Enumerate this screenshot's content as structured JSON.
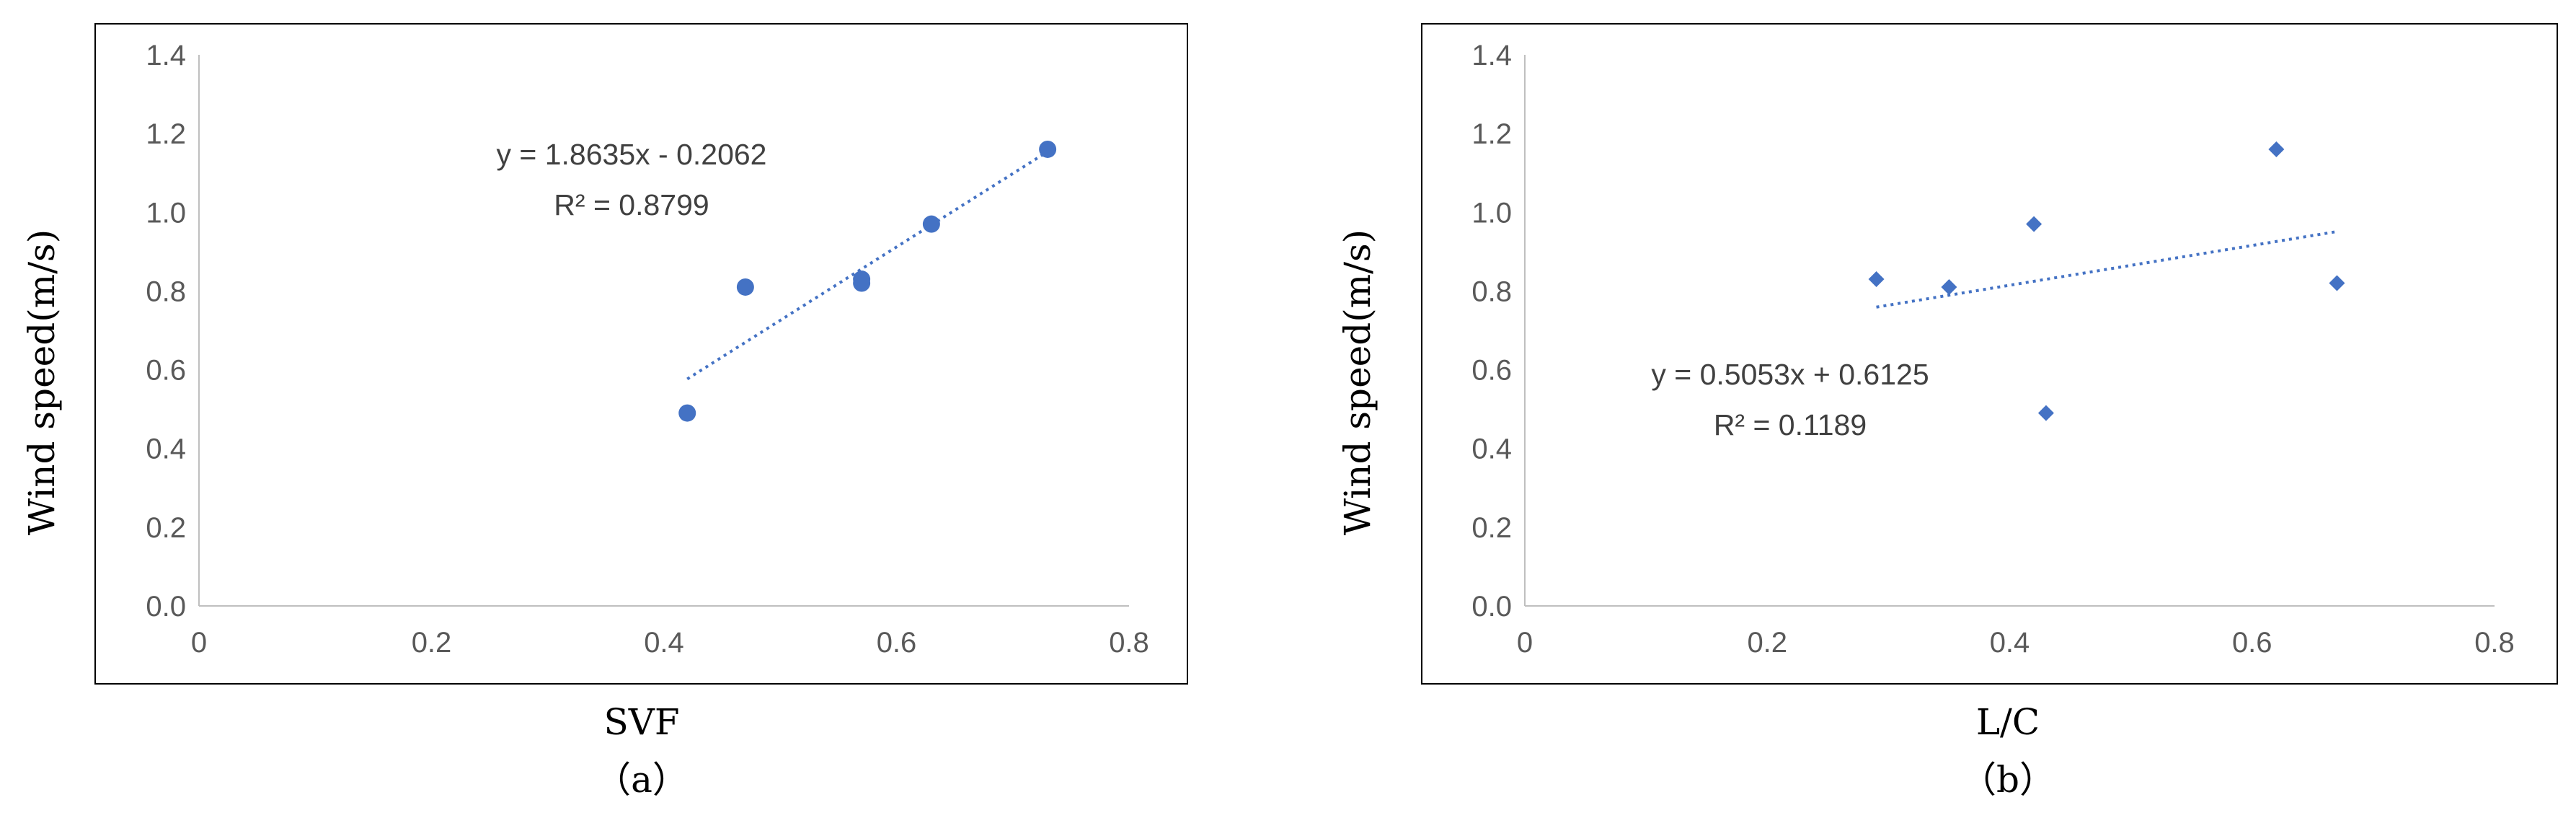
{
  "colors": {
    "marker": "#4472C4",
    "trend": "#4472C4",
    "axis": "#BFBFBF",
    "frame": "#000000",
    "text": "#595959"
  },
  "chart_data": [
    {
      "type": "scatter",
      "caption": "（a）",
      "xlabel": "SVF",
      "ylabel": "Wind speed(m/s)",
      "xlim": [
        0,
        0.8
      ],
      "ylim": [
        0,
        1.4
      ],
      "xticks": [
        "0",
        "0.2",
        "0.4",
        "0.6",
        "0.8"
      ],
      "yticks": [
        "0.0",
        "0.2",
        "0.4",
        "0.6",
        "0.8",
        "1.0",
        "1.2",
        "1.4"
      ],
      "grid": false,
      "marker": "circle",
      "points": [
        {
          "x": 0.42,
          "y": 0.49
        },
        {
          "x": 0.47,
          "y": 0.81
        },
        {
          "x": 0.57,
          "y": 0.82
        },
        {
          "x": 0.57,
          "y": 0.83
        },
        {
          "x": 0.63,
          "y": 0.97
        },
        {
          "x": 0.73,
          "y": 1.16
        }
      ],
      "trendline": {
        "slope": 1.8635,
        "intercept": -0.2062,
        "x_range": [
          0.42,
          0.73
        ]
      },
      "equation": "y = 1.8635x - 0.2062",
      "r2": "R² = 0.8799"
    },
    {
      "type": "scatter",
      "caption": "（b）",
      "xlabel": "L/C",
      "ylabel": "Wind speed(m/s)",
      "xlim": [
        0,
        0.8
      ],
      "ylim": [
        0,
        1.4
      ],
      "xticks": [
        "0",
        "0.2",
        "0.4",
        "0.6",
        "0.8"
      ],
      "yticks": [
        "0.0",
        "0.2",
        "0.4",
        "0.6",
        "0.8",
        "1.0",
        "1.2",
        "1.4"
      ],
      "grid": false,
      "marker": "diamond",
      "points": [
        {
          "x": 0.29,
          "y": 0.83
        },
        {
          "x": 0.35,
          "y": 0.81
        },
        {
          "x": 0.42,
          "y": 0.97
        },
        {
          "x": 0.43,
          "y": 0.49
        },
        {
          "x": 0.62,
          "y": 1.16
        },
        {
          "x": 0.67,
          "y": 0.82
        }
      ],
      "trendline": {
        "slope": 0.5053,
        "intercept": 0.6125,
        "x_range": [
          0.29,
          0.67
        ]
      },
      "equation": "y = 0.5053x + 0.6125",
      "r2": "R² = 0.1189"
    }
  ]
}
